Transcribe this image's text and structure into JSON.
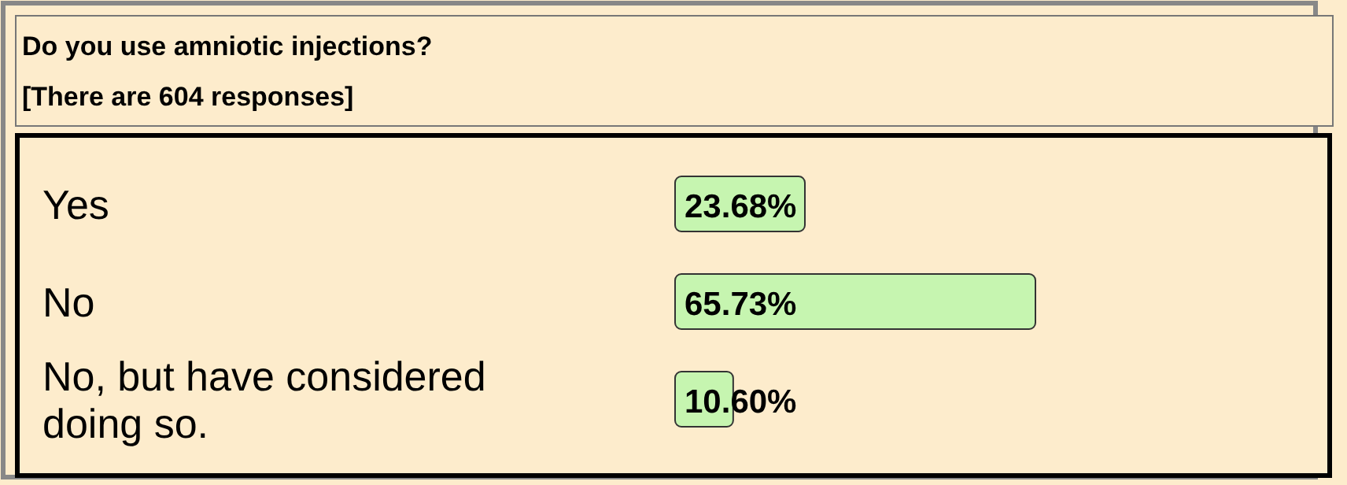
{
  "chart_data": {
    "type": "bar",
    "orientation": "horizontal",
    "title": "Do you use amniotic injections?",
    "subtitle": "[There are 604 responses]",
    "categories": [
      "Yes",
      "No",
      "No, but have considered doing so."
    ],
    "values": [
      23.68,
      65.73,
      10.6
    ],
    "value_labels": [
      "23.68%",
      "65.73%",
      "10.60%"
    ],
    "color": "#c6f5b0"
  }
}
